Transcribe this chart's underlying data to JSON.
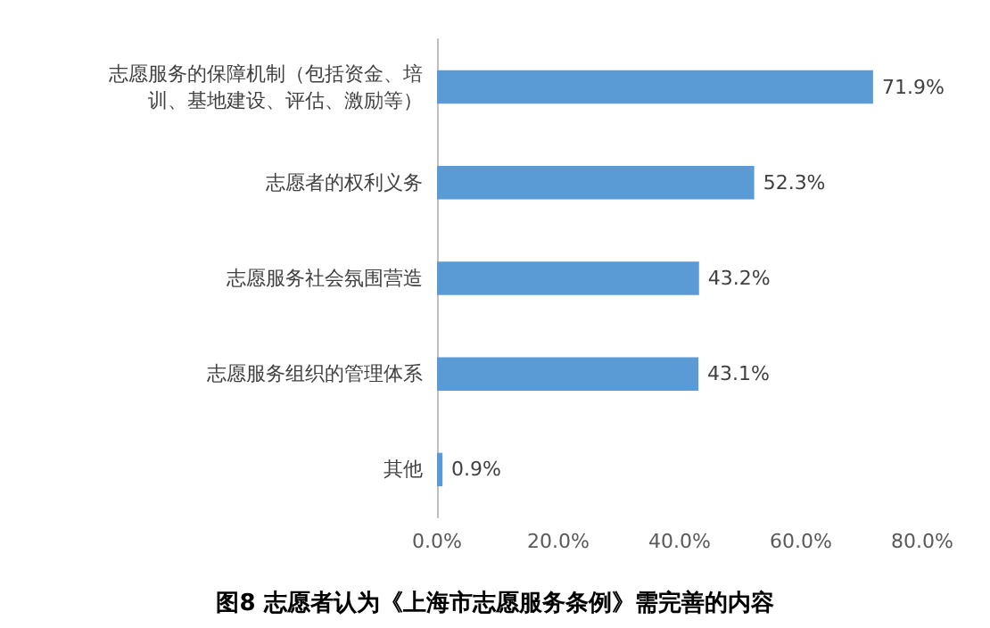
{
  "chart_data": {
    "type": "bar",
    "orientation": "horizontal",
    "title": "图8 志愿者认为《上海市志愿服务条例》需完善的内容",
    "categories": [
      "志愿服务的保障机制（包括资金、培训、基地建设、评估、激励等）",
      "志愿者的权利义务",
      "志愿服务社会氛围营造",
      "志愿服务组织的管理体系",
      "其他"
    ],
    "values": [
      71.9,
      52.3,
      43.2,
      43.1,
      0.9
    ],
    "value_labels": [
      "71.9%",
      "52.3%",
      "43.2%",
      "43.1%",
      "0.9%"
    ],
    "color": "#5b9bd5",
    "xlim": [
      0,
      80
    ],
    "xticks": [
      {
        "value": 0,
        "label": "0.0%"
      },
      {
        "value": 20,
        "label": "20.0%"
      },
      {
        "value": 40,
        "label": "40.0%"
      },
      {
        "value": 60,
        "label": "60.0%"
      },
      {
        "value": 80,
        "label": "80.0%"
      }
    ],
    "grid": false
  }
}
